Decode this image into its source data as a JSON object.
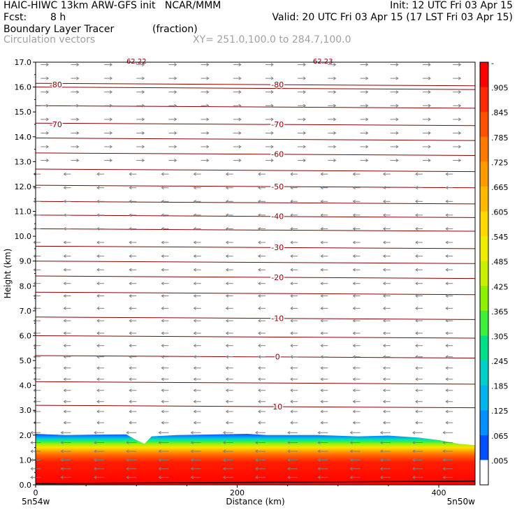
{
  "header": {
    "line1_left": "HAIC-HIWC 13km ARW-GFS init   NCAR/MMM",
    "line1_right": "Init: 12 UTC Fri 03 Apr 15",
    "line2_fcst_label": "Fcst:",
    "line2_fcst_value": "8 h",
    "line2_right": "Valid: 20 UTC Fri 03 Apr 15 (17 LST Fri 03 Apr 15)",
    "line3_left": "Boundary Layer Tracer",
    "line3_units": "(fraction)",
    "line4_left": "Circulation vectors",
    "line4_right": "XY= 251.0,100.0 to 284.7,100.0"
  },
  "chart_data": {
    "type": "heatmap",
    "xlabel": "Distance (km)",
    "ylabel": "Height (km)",
    "xlim": [
      0,
      436
    ],
    "ylim": [
      0,
      17
    ],
    "x_ticks": [
      0,
      200,
      400
    ],
    "y_ticks": [
      "0.0",
      "1.0",
      "2.0",
      "3.0",
      "4.0",
      "5.0",
      "6.0",
      "7.0",
      "8.0",
      "9.0",
      "10.0",
      "11.0",
      "12.0",
      "13.0",
      "14.0",
      "15.0",
      "16.0",
      "17.0"
    ],
    "x_endpoint_labels": [
      "5n54w",
      "5n50w"
    ],
    "top_clipped_labels": [
      "62.22",
      "62.23"
    ],
    "colorbar": {
      "labels": [
        "-",
        ".905",
        ".845",
        ".785",
        ".725",
        ".665",
        ".605",
        ".545",
        ".485",
        ".425",
        ".365",
        ".305",
        ".245",
        ".185",
        ".125",
        ".065",
        ".005"
      ],
      "colors": [
        "#ff0000",
        "#ff2a00",
        "#ff5000",
        "#ff7800",
        "#ff9a00",
        "#ffb800",
        "#ffd800",
        "#f0ee00",
        "#c8f000",
        "#8cf000",
        "#3cf03c",
        "#00e088",
        "#00d0c8",
        "#00b4f0",
        "#0090ff",
        "#0050ff",
        "#ffffff"
      ]
    },
    "tracer_top_km": [
      [
        0,
        2.05
      ],
      [
        30,
        2.0
      ],
      [
        60,
        2.02
      ],
      [
        90,
        2.03
      ],
      [
        100,
        1.8
      ],
      [
        108,
        1.65
      ],
      [
        115,
        1.95
      ],
      [
        140,
        2.0
      ],
      [
        180,
        2.03
      ],
      [
        210,
        2.05
      ],
      [
        230,
        2.0
      ],
      [
        280,
        2.0
      ],
      [
        320,
        1.95
      ],
      [
        350,
        1.98
      ],
      [
        380,
        1.9
      ],
      [
        400,
        1.8
      ],
      [
        420,
        1.65
      ],
      [
        436,
        1.6
      ]
    ],
    "isotherms_c": [
      {
        "value": 10,
        "label": "10",
        "height_km": 3.15
      },
      {
        "value": 0,
        "label": "0",
        "height_km": 5.15
      },
      {
        "value": -10,
        "label": "-10",
        "height_km": 6.7
      },
      {
        "value": -20,
        "label": "-20",
        "height_km": 8.35
      },
      {
        "value": -30,
        "label": "-30",
        "height_km": 9.55
      },
      {
        "value": -40,
        "label": "-40",
        "height_km": 10.8
      },
      {
        "value": -50,
        "label": "-50",
        "height_km": 12.0
      },
      {
        "value": -60,
        "label": "-60",
        "height_km": 13.3
      },
      {
        "value": -70,
        "label": "-70",
        "height_km": 14.5
      },
      {
        "value": -80,
        "label": "-80",
        "height_km": 16.1
      }
    ],
    "other_contour_heights_km": [
      4.1,
      5.95,
      7.7,
      8.95,
      10.25,
      11.35,
      12.65,
      13.9,
      15.2,
      15.95
    ],
    "vectors": {
      "levels_km": [
        0.3,
        0.65,
        1.0,
        1.35,
        1.7,
        2.1,
        2.5,
        2.95,
        3.35,
        3.8,
        4.25,
        4.7,
        5.15,
        5.6,
        6.1,
        6.6,
        7.1,
        7.6,
        8.1,
        8.65,
        9.2,
        9.75,
        10.3,
        10.85,
        11.4,
        11.95,
        12.5,
        13.05,
        13.6,
        14.15,
        14.7,
        15.25,
        15.8,
        16.35,
        16.9
      ],
      "x_km": [
        5,
        35,
        68,
        100,
        132,
        164,
        196,
        228,
        260,
        290,
        322,
        352,
        384,
        414
      ],
      "westerly_above_km": 12.8,
      "pattern": "easterly (toward left) below ~12.8 km, westerly (toward right) above"
    }
  }
}
